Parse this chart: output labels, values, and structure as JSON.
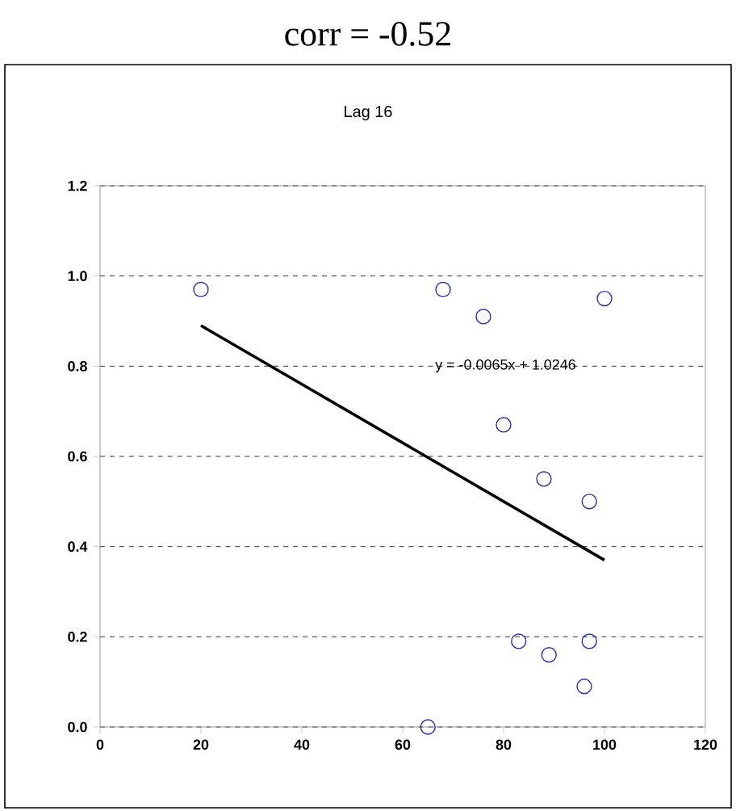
{
  "chart_data": {
    "type": "scatter",
    "title": "corr = -0.52",
    "subtitle": "Lag 16",
    "xlim": [
      0,
      120
    ],
    "xticks": [
      0,
      20,
      40,
      60,
      80,
      100,
      120
    ],
    "ylim": [
      0,
      1.2
    ],
    "yticks": [
      {
        "value": 0,
        "label": "0.0"
      },
      {
        "value": 0.2,
        "label": "0.2"
      },
      {
        "value": 0.4,
        "label": "0.4"
      },
      {
        "value": 0.6,
        "label": "0.6"
      },
      {
        "value": 0.8,
        "label": "0.8"
      },
      {
        "value": 1,
        "label": "1.0"
      },
      {
        "value": 1.2,
        "label": "1.2"
      }
    ],
    "grid": "y",
    "series": [
      {
        "marker": "circle",
        "color": "#2b2bb0",
        "x": [
          20,
          68,
          76,
          100,
          80,
          88,
          97,
          83,
          89,
          97,
          96,
          65
        ],
        "values": [
          0.97,
          0.97,
          0.91,
          0.95,
          0.67,
          0.55,
          0.5,
          0.19,
          0.16,
          0.19,
          0.09,
          0.0
        ]
      },
      {
        "type": "line",
        "color": "#000000",
        "x": [
          20,
          100
        ],
        "values": [
          0.89,
          0.37
        ]
      }
    ],
    "annotations": [
      "y = -0.0065x + 1.0246"
    ]
  }
}
